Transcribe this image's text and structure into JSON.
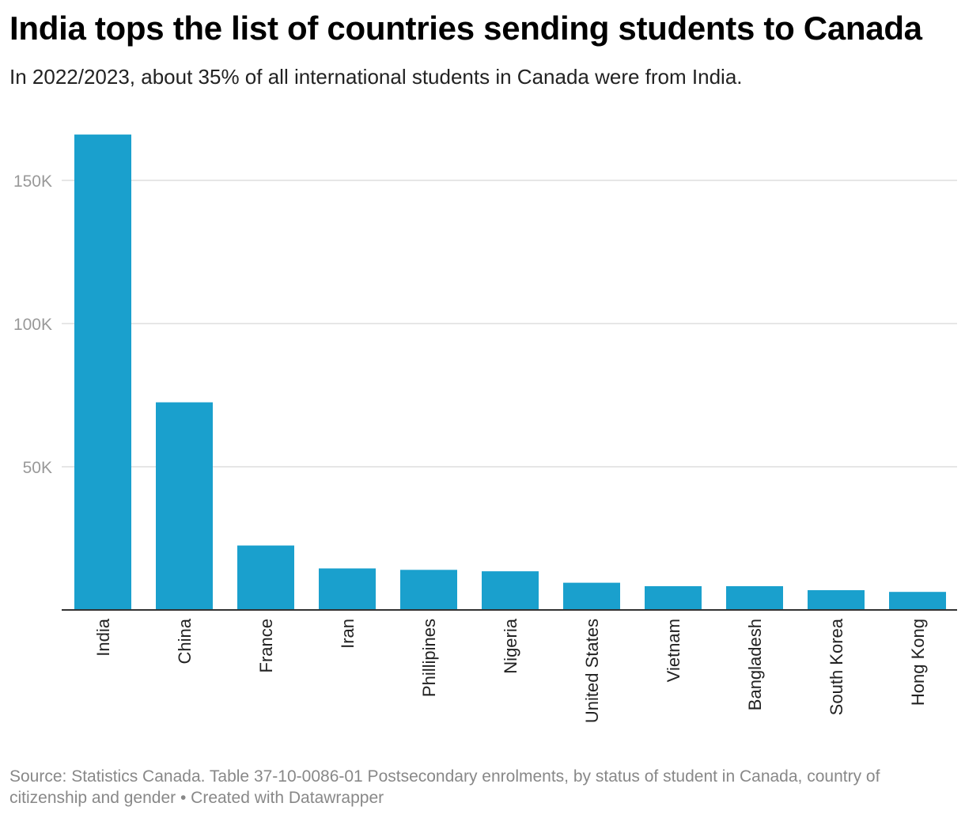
{
  "header": {
    "title": "India tops the list of countries sending students to Canada",
    "subtitle": "In 2022/2023, about 35% of all international students in Canada were from India."
  },
  "footer": {
    "source_text": "Source: Statistics Canada. Table 37-10-0086-01 Postsecondary enrolments, by status of student in Canada, country of citizenship and gender • Created with Datawrapper"
  },
  "colors": {
    "bar": "#1aa0cd",
    "grid": "#dddddd",
    "baseline": "#333333",
    "tick_label": "#999999"
  },
  "chart_data": {
    "type": "bar",
    "title": "India tops the list of countries sending students to Canada",
    "subtitle": "In 2022/2023, about 35% of all international students in Canada were from India.",
    "xlabel": "",
    "ylabel": "",
    "ylim": [
      0,
      165000
    ],
    "yticks": [
      50000,
      100000,
      150000
    ],
    "ytick_labels": [
      "50K",
      "100K",
      "150K"
    ],
    "grid": true,
    "categories": [
      "India",
      "China",
      "France",
      "Iran",
      "Phillipines",
      "Nigeria",
      "United States",
      "Vietnam",
      "Bangladesh",
      "South Korea",
      "Hong Kong"
    ],
    "values": [
      166000,
      72500,
      22500,
      14500,
      14000,
      13500,
      9500,
      8300,
      8300,
      6900,
      6300
    ]
  }
}
